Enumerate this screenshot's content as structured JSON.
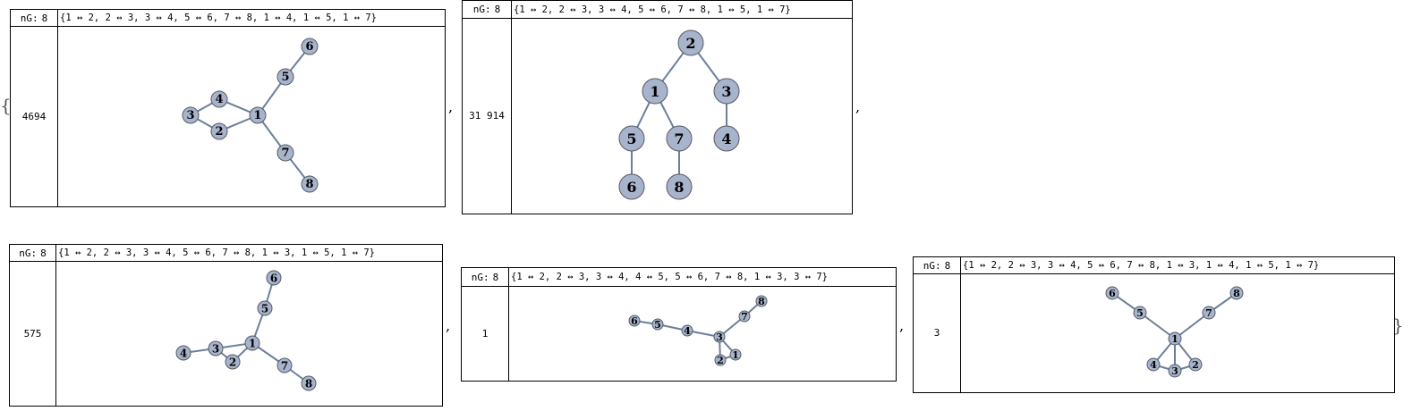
{
  "outer": {
    "open": "{",
    "close": "}",
    "separator": ","
  },
  "cards": [
    {
      "ng_label": "nG:",
      "ng_value": "8",
      "id": "4694",
      "edges": "{1 ↔ 2, 2 ↔ 3, 3 ↔ 4, 5 ↔ 6, 7 ↔ 8, 1 ↔ 4, 1 ↔ 5, 1 ↔ 7}",
      "graph": {
        "edges": [
          [
            1,
            2
          ],
          [
            2,
            3
          ],
          [
            3,
            4
          ],
          [
            5,
            6
          ],
          [
            7,
            8
          ],
          [
            1,
            4
          ],
          [
            1,
            5
          ],
          [
            1,
            7
          ]
        ]
      }
    },
    {
      "ng_label": "nG:",
      "ng_value": "8",
      "id": "31 914",
      "edges": "{1 ↔ 2, 2 ↔ 3, 3 ↔ 4, 5 ↔ 6, 7 ↔ 8, 1 ↔ 5, 1 ↔ 7}",
      "graph": {
        "edges": [
          [
            1,
            2
          ],
          [
            2,
            3
          ],
          [
            3,
            4
          ],
          [
            5,
            6
          ],
          [
            7,
            8
          ],
          [
            1,
            5
          ],
          [
            1,
            7
          ]
        ]
      }
    },
    {
      "ng_label": "nG:",
      "ng_value": "8",
      "id": "575",
      "edges": "{1 ↔ 2, 2 ↔ 3, 3 ↔ 4, 5 ↔ 6, 7 ↔ 8, 1 ↔ 3, 1 ↔ 5, 1 ↔ 7}",
      "graph": {
        "edges": [
          [
            1,
            2
          ],
          [
            2,
            3
          ],
          [
            3,
            4
          ],
          [
            5,
            6
          ],
          [
            7,
            8
          ],
          [
            1,
            3
          ],
          [
            1,
            5
          ],
          [
            1,
            7
          ]
        ]
      }
    },
    {
      "ng_label": "nG:",
      "ng_value": "8",
      "id": "1",
      "edges": "{1 ↔ 2, 2 ↔ 3, 3 ↔ 4, 4 ↔ 5, 5 ↔ 6, 7 ↔ 8, 1 ↔ 3, 3 ↔ 7}",
      "graph": {
        "edges": [
          [
            1,
            2
          ],
          [
            2,
            3
          ],
          [
            3,
            4
          ],
          [
            4,
            5
          ],
          [
            5,
            6
          ],
          [
            7,
            8
          ],
          [
            1,
            3
          ],
          [
            3,
            7
          ]
        ]
      }
    },
    {
      "ng_label": "nG:",
      "ng_value": "8",
      "id": "3",
      "edges": "{1 ↔ 2, 2 ↔ 3, 3 ↔ 4, 5 ↔ 6, 7 ↔ 8, 1 ↔ 3, 1 ↔ 4, 1 ↔ 5, 1 ↔ 7}",
      "graph": {
        "edges": [
          [
            1,
            2
          ],
          [
            2,
            3
          ],
          [
            3,
            4
          ],
          [
            5,
            6
          ],
          [
            7,
            8
          ],
          [
            1,
            3
          ],
          [
            1,
            4
          ],
          [
            1,
            5
          ],
          [
            1,
            7
          ]
        ]
      }
    }
  ]
}
